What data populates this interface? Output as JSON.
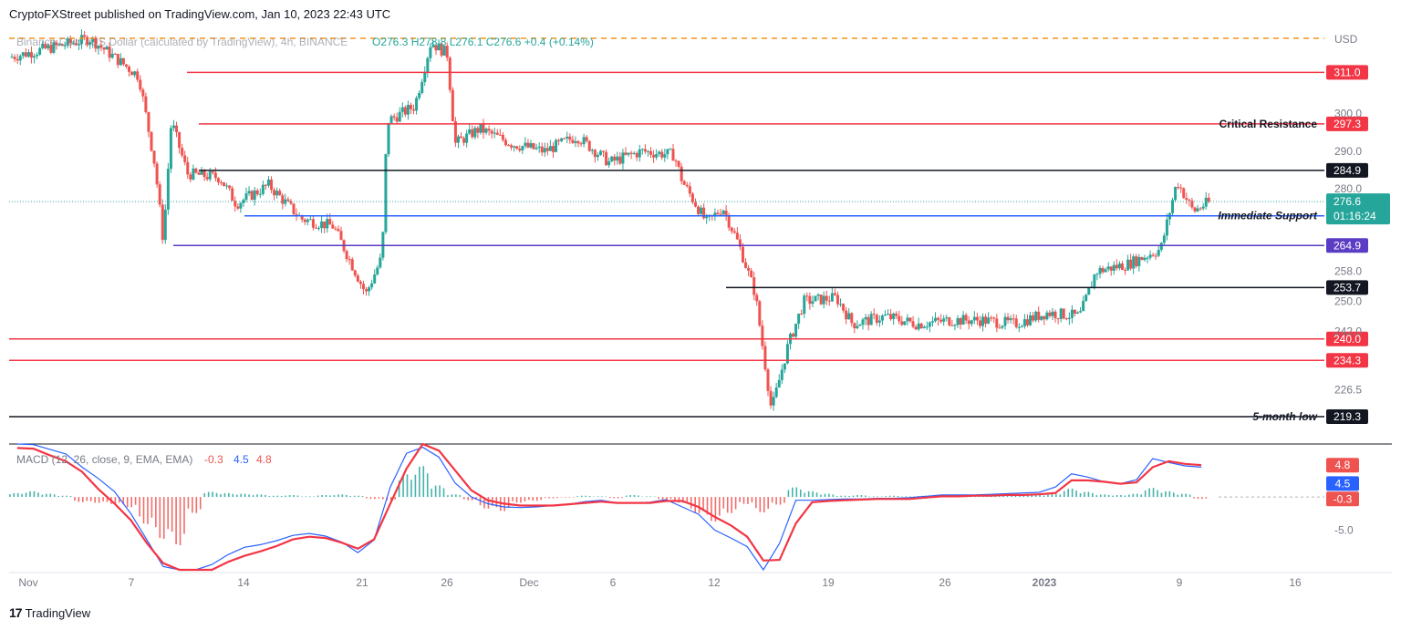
{
  "header": {
    "publisher_line": "CryptoFXStreet published on TradingView.com, Jan 10, 2023 22:43 UTC"
  },
  "footer": {
    "brand": "TradingView"
  },
  "colors": {
    "up": "#26a69a",
    "down": "#ef5350",
    "red_level": "#f23645",
    "black_level": "#131722",
    "blue_level": "#2962ff",
    "purple_level": "#5b3cc4",
    "orange_dash": "#f7931a",
    "macd_line": "#2962ff",
    "signal_line": "#f23645"
  },
  "chart_data": {
    "type": "candlestick",
    "symbol_legend": {
      "name": "Binance Coin / US Dollar (calculated by TradingView), 4h, BINANCE",
      "o": "O276.3",
      "h": "H278.8",
      "l": "L276.1",
      "c": "C276.6",
      "chg": "+0.4 (+0.14%)"
    },
    "currency": "USD",
    "ylim": [
      213,
      323
    ],
    "y_ticks": [
      "300.0",
      "290.0",
      "280.0",
      "258.0",
      "250.0",
      "242.0",
      "226.5"
    ],
    "x_ticks": [
      "Nov",
      "7",
      "14",
      "21",
      "26",
      "Dec",
      "6",
      "12",
      "19",
      "26",
      "2023",
      "9",
      "16"
    ],
    "last_price": "276.6",
    "countdown": "01:16:24",
    "levels": [
      {
        "value": 311.0,
        "label": "311.0",
        "color": "red",
        "annotation": ""
      },
      {
        "value": 297.3,
        "label": "297.3",
        "color": "red",
        "annotation": "Critical Resistance"
      },
      {
        "value": 284.9,
        "label": "284.9",
        "color": "black",
        "annotation": ""
      },
      {
        "value": 272.8,
        "label": "272.8",
        "color": "blue",
        "annotation": "Immediate Support"
      },
      {
        "value": 264.9,
        "label": "264.9",
        "color": "purple",
        "annotation": ""
      },
      {
        "value": 253.7,
        "label": "253.7",
        "color": "black",
        "annotation": ""
      },
      {
        "value": 240.0,
        "label": "240.0",
        "color": "red",
        "annotation": ""
      },
      {
        "value": 234.3,
        "label": "234.3",
        "color": "red",
        "annotation": ""
      },
      {
        "value": 219.3,
        "label": "219.3",
        "color": "black",
        "annotation": "5-month low"
      }
    ],
    "price_path": [
      [
        0,
        315
      ],
      [
        5,
        320
      ],
      [
        8,
        310
      ],
      [
        9,
        286
      ],
      [
        9.5,
        266
      ],
      [
        10,
        298
      ],
      [
        11,
        284
      ],
      [
        13,
        283
      ],
      [
        14,
        276
      ],
      [
        16,
        281
      ],
      [
        18,
        272
      ],
      [
        20,
        270
      ],
      [
        21,
        261
      ],
      [
        22,
        252
      ],
      [
        23,
        262
      ],
      [
        23.3,
        298
      ],
      [
        25,
        302
      ],
      [
        26,
        319
      ],
      [
        27,
        316
      ],
      [
        27.5,
        292
      ],
      [
        29,
        296
      ],
      [
        31,
        292
      ],
      [
        33,
        290
      ],
      [
        35,
        294
      ],
      [
        37,
        287
      ],
      [
        39,
        290
      ],
      [
        41,
        289
      ],
      [
        41.5,
        282
      ],
      [
        43,
        271
      ],
      [
        44,
        275
      ],
      [
        45,
        265
      ],
      [
        46,
        252
      ],
      [
        47,
        221
      ],
      [
        48,
        238
      ],
      [
        49,
        250
      ],
      [
        51,
        251
      ],
      [
        52,
        244
      ],
      [
        54,
        246
      ],
      [
        56,
        244
      ],
      [
        58,
        245
      ],
      [
        60,
        245
      ],
      [
        62,
        244
      ],
      [
        64,
        247
      ],
      [
        66,
        246
      ],
      [
        67,
        258
      ],
      [
        69,
        260
      ],
      [
        71,
        264
      ],
      [
        72,
        282
      ],
      [
        73,
        274
      ],
      [
        74,
        276.6
      ]
    ],
    "macd_legend": {
      "name": "MACD (12, 26, close, 9, EMA, EMA)",
      "hist": "-0.3",
      "macd": "4.5",
      "signal": "4.8"
    },
    "macd_ylim": [
      -11,
      8
    ],
    "macd_y_ticks": [
      "-5.0"
    ],
    "macd_hist": [
      0.6,
      0.9,
      0.5,
      0.2,
      -0.8,
      -0.9,
      -1.1,
      -1.6,
      -4.2,
      -6.5,
      -7.5,
      -2.5,
      0.8,
      0.6,
      0.5,
      0.4,
      0.2,
      0.3,
      0.1,
      0.3,
      0.4,
      0.2,
      -0.3,
      -0.5,
      3.5,
      4.8,
      1.8,
      0.4,
      -0.5,
      -1.8,
      -2.2,
      -0.9,
      -0.6,
      -0.2,
      -0.1,
      0.2,
      0.1,
      -0.2,
      0.3,
      0.1,
      -0.4,
      -0.9,
      -2.5,
      -3.8,
      -2.5,
      -1.1,
      -2.4,
      -1.2,
      1.5,
      0.9,
      0.5,
      0.2,
      0.3,
      0.1,
      0.2,
      0.1,
      0.2,
      0.3,
      0.2,
      0.1,
      0.3,
      0.2,
      0.4,
      0.3,
      0.5,
      1.3,
      0.8,
      0.4,
      0.3,
      0.5,
      1.4,
      0.9,
      0.5,
      -0.3
    ],
    "macd_line": [
      8.5,
      7.9,
      7.2,
      6.5,
      4.5,
      2.8,
      0.8,
      -2.5,
      -6.5,
      -10.5,
      -13.5,
      -12.5,
      -10.2,
      -8.7,
      -7.6,
      -7.2,
      -6.6,
      -5.8,
      -5.5,
      -5.9,
      -6.8,
      -8.4,
      -6.5,
      1.5,
      6.6,
      7.5,
      6.0,
      2.1,
      0.0,
      -1.0,
      -1.5,
      -1.6,
      -1.5,
      -1.3,
      -1.1,
      -0.7,
      -0.5,
      -0.9,
      -0.9,
      -0.8,
      -0.4,
      -1.5,
      -2.6,
      -5.0,
      -6.2,
      -7.5,
      -12.0,
      -7.0,
      -0.5,
      -0.5,
      -0.4,
      -0.3,
      -0.3,
      -0.2,
      -0.2,
      -0.1,
      0.1,
      0.3,
      0.3,
      0.3,
      0.4,
      0.5,
      0.6,
      0.7,
      1.5,
      3.5,
      3.0,
      2.3,
      2.0,
      2.6,
      5.8,
      5.2,
      4.7,
      4.5
    ],
    "signal_line": [
      7.4,
      7.3,
      6.3,
      5.4,
      3.8,
      1.2,
      -1.0,
      -3.5,
      -7.0,
      -10.0,
      -12.0,
      -12.2,
      -11.0,
      -9.8,
      -8.9,
      -8.2,
      -7.4,
      -6.4,
      -6.0,
      -6.2,
      -6.9,
      -7.8,
      -6.4,
      -1.0,
      4.3,
      8.0,
      7.0,
      4.0,
      1.0,
      -0.5,
      -1.0,
      -1.3,
      -1.3,
      -1.3,
      -1.1,
      -0.9,
      -0.7,
      -0.9,
      -0.9,
      -0.9,
      -0.6,
      -0.6,
      -1.5,
      -3.0,
      -4.3,
      -6.0,
      -9.6,
      -9.5,
      -4.0,
      -0.8,
      -0.6,
      -0.5,
      -0.4,
      -0.3,
      -0.3,
      -0.3,
      -0.1,
      0.1,
      0.1,
      0.2,
      0.2,
      0.3,
      0.3,
      0.4,
      0.6,
      2.5,
      2.5,
      2.3,
      2.0,
      2.2,
      4.5,
      5.4,
      5.0,
      4.8
    ]
  }
}
